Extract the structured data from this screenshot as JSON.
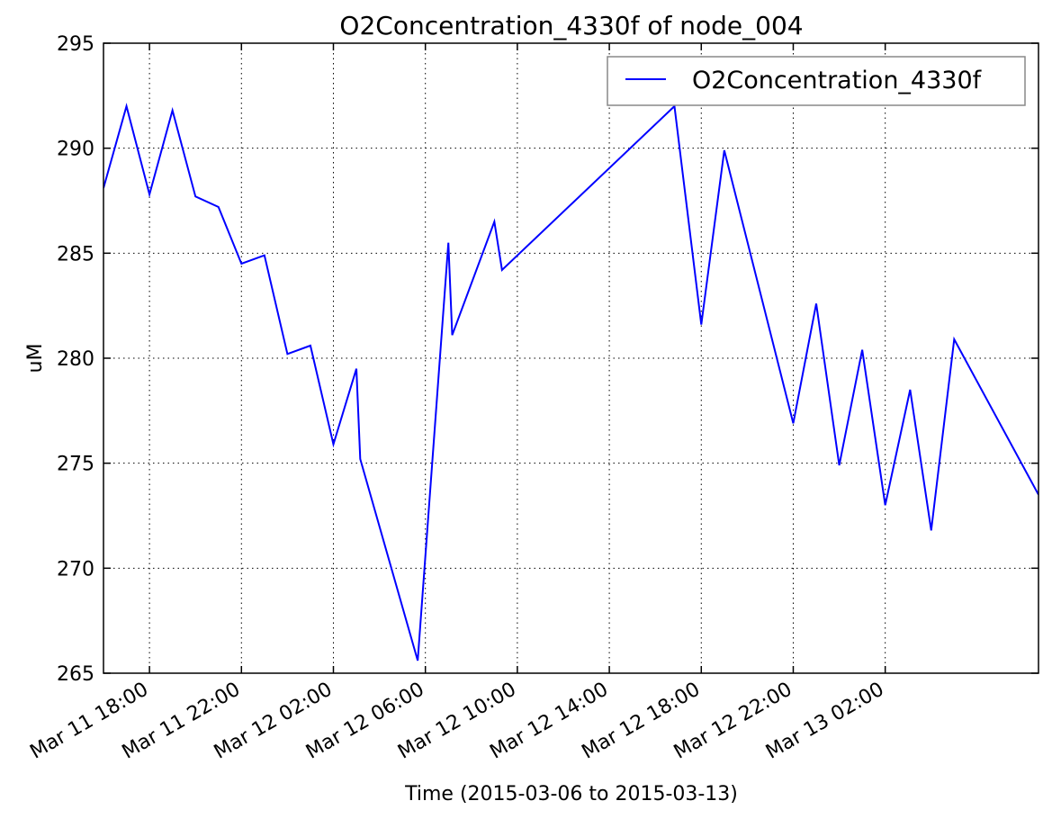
{
  "chart_data": {
    "type": "line",
    "title": "O2Concentration_4330f of node_004",
    "xlabel": "Time (2015-03-06 to 2015-03-13)",
    "ylabel": "uM",
    "ylim": [
      265,
      295
    ],
    "xlim": [
      "2015-03-11 16:00",
      "2015-03-13 08:40"
    ],
    "yticks": [
      265,
      270,
      275,
      280,
      285,
      290,
      295
    ],
    "xticks": [
      {
        "t": "2015-03-11 18:00",
        "label": "Mar 11 18:00"
      },
      {
        "t": "2015-03-11 22:00",
        "label": "Mar 11 22:00"
      },
      {
        "t": "2015-03-12 02:00",
        "label": "Mar 12 02:00"
      },
      {
        "t": "2015-03-12 06:00",
        "label": "Mar 12 06:00"
      },
      {
        "t": "2015-03-12 10:00",
        "label": "Mar 12 10:00"
      },
      {
        "t": "2015-03-12 14:00",
        "label": "Mar 12 14:00"
      },
      {
        "t": "2015-03-12 18:00",
        "label": "Mar 12 18:00"
      },
      {
        "t": "2015-03-12 22:00",
        "label": "Mar 12 22:00"
      },
      {
        "t": "2015-03-13 02:00",
        "label": "Mar 13 02:00"
      }
    ],
    "grid": true,
    "legend_position": "top-right",
    "series": [
      {
        "name": "O2Concentration_4330f",
        "color": "#0000ff",
        "points": [
          [
            "2015-03-11 16:00",
            288.1
          ],
          [
            "2015-03-11 17:00",
            292.0
          ],
          [
            "2015-03-11 18:00",
            287.8
          ],
          [
            "2015-03-11 19:00",
            291.8
          ],
          [
            "2015-03-11 20:00",
            287.7
          ],
          [
            "2015-03-11 21:00",
            287.2
          ],
          [
            "2015-03-11 22:00",
            284.5
          ],
          [
            "2015-03-11 23:00",
            284.9
          ],
          [
            "2015-03-12 00:00",
            280.2
          ],
          [
            "2015-03-12 01:00",
            280.6
          ],
          [
            "2015-03-12 02:00",
            275.9
          ],
          [
            "2015-03-12 03:00",
            279.5
          ],
          [
            "2015-03-12 03:10",
            275.2
          ],
          [
            "2015-03-12 05:40",
            265.6
          ],
          [
            "2015-03-12 07:00",
            285.5
          ],
          [
            "2015-03-12 07:10",
            281.1
          ],
          [
            "2015-03-12 09:00",
            286.5
          ],
          [
            "2015-03-12 09:20",
            284.2
          ],
          [
            "2015-03-12 16:50",
            292.0
          ],
          [
            "2015-03-12 18:00",
            281.6
          ],
          [
            "2015-03-12 19:00",
            289.9
          ],
          [
            "2015-03-12 22:00",
            276.9
          ],
          [
            "2015-03-12 23:00",
            282.6
          ],
          [
            "2015-03-13 00:00",
            274.9
          ],
          [
            "2015-03-13 01:00",
            280.4
          ],
          [
            "2015-03-13 02:00",
            273.0
          ],
          [
            "2015-03-13 03:05",
            278.5
          ],
          [
            "2015-03-13 04:00",
            271.8
          ],
          [
            "2015-03-13 05:00",
            280.9
          ],
          [
            "2015-03-13 08:40",
            273.5
          ]
        ]
      }
    ]
  }
}
